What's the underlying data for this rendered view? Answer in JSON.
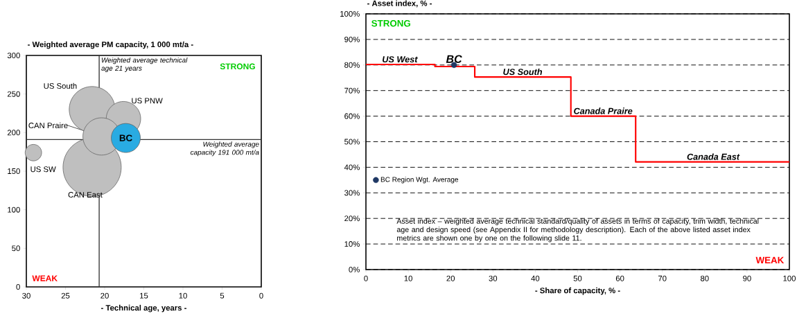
{
  "chart_data": [
    {
      "type": "bubble",
      "title": "- Weighted average PM capacity, 1 000 mt/a -",
      "xlabel": "- Technical age, years -",
      "series": [
        {
          "name": "CAN East",
          "color": "#bfbfbf",
          "x": [
            21.6
          ],
          "values": [
            155
          ],
          "sizes": [
            1
          ]
        },
        {
          "name": "US South",
          "color": "#bfbfbf",
          "x": [
            21.6
          ],
          "values": [
            230
          ],
          "sizes": [
            0.62
          ]
        },
        {
          "name": "US PNW",
          "color": "#bfbfbf",
          "x": [
            17.6
          ],
          "values": [
            218
          ],
          "sizes": [
            0.35
          ]
        },
        {
          "name": "CAN Praire",
          "color": "#bfbfbf",
          "x": [
            20.4
          ],
          "values": [
            195
          ],
          "sizes": [
            0.41
          ]
        },
        {
          "name": "US SW",
          "color": "#bfbfbf",
          "x": [
            29.1
          ],
          "values": [
            174
          ],
          "sizes": [
            0.08
          ]
        },
        {
          "name": "BC",
          "color": "#29abe2",
          "x": [
            17.3
          ],
          "values": [
            193
          ],
          "sizes": [
            0.25
          ]
        }
      ],
      "xlim": [
        30,
        0
      ],
      "xticks": [
        30,
        25,
        20,
        15,
        10,
        5,
        0
      ],
      "ylim": [
        0,
        300
      ],
      "yticks": [
        0,
        50,
        100,
        150,
        200,
        250,
        300
      ],
      "ref_lines": [
        {
          "axis": "x",
          "value": 20.7,
          "label": "Weighted average technical age 21 years"
        },
        {
          "axis": "y",
          "value": 191,
          "label": "Weighted average capacity 191 000 mt/a"
        }
      ],
      "annotations": [
        "STRONG",
        "WEAK"
      ]
    },
    {
      "type": "step",
      "title": "- Asset index, % -",
      "xlabel": "- Share of capacity, % -",
      "series": [
        {
          "type": "step",
          "color": "#ff0000",
          "x": [
            0,
            16.3,
            25.7,
            48.4,
            63.7,
            100
          ],
          "values": [
            80.2,
            79.4,
            75.3,
            60,
            42.1,
            42.1
          ]
        },
        {
          "type": "scatter",
          "name": "BC Region Wgt. Average",
          "color": "#1f3864",
          "x": [
            20.8
          ],
          "values": [
            80
          ]
        }
      ],
      "xlim": [
        0,
        100
      ],
      "xticks": [
        0,
        10,
        20,
        30,
        40,
        50,
        60,
        70,
        80,
        90,
        100
      ],
      "ylim": [
        0,
        100
      ],
      "yticks": [
        {
          "value": 0,
          "label": "0%"
        },
        {
          "value": 10,
          "label": "10%"
        },
        {
          "value": 20,
          "label": "20%"
        },
        {
          "value": 30,
          "label": "30%"
        },
        {
          "value": 40,
          "label": "40%"
        },
        {
          "value": 50,
          "label": "50%"
        },
        {
          "value": 60,
          "label": "60%"
        },
        {
          "value": 70,
          "label": "70%"
        },
        {
          "value": 80,
          "label": "80%"
        },
        {
          "value": 90,
          "label": "90%"
        },
        {
          "value": 100,
          "label": "100%"
        }
      ],
      "grid": "y",
      "legend": "left",
      "annotations": [
        "STRONG",
        "WEAK",
        "Asset index – weighted average technical standard/quality of assets in terms of capacity, trim width, technical age and design speed (see Appendix II for methodology description). Each of the above listed asset index metrics are shown one by one on the following slide 11.",
        {
          "text": "US West",
          "x": 8,
          "y": 80.2
        },
        {
          "text": "BC",
          "x": 20.8,
          "y": 80
        },
        {
          "text": "US South",
          "x": 37,
          "y": 75.3
        },
        {
          "text": "Canada Praire",
          "x": 56,
          "y": 60
        },
        {
          "text": "Canada East",
          "x": 82,
          "y": 42.1
        }
      ]
    }
  ]
}
